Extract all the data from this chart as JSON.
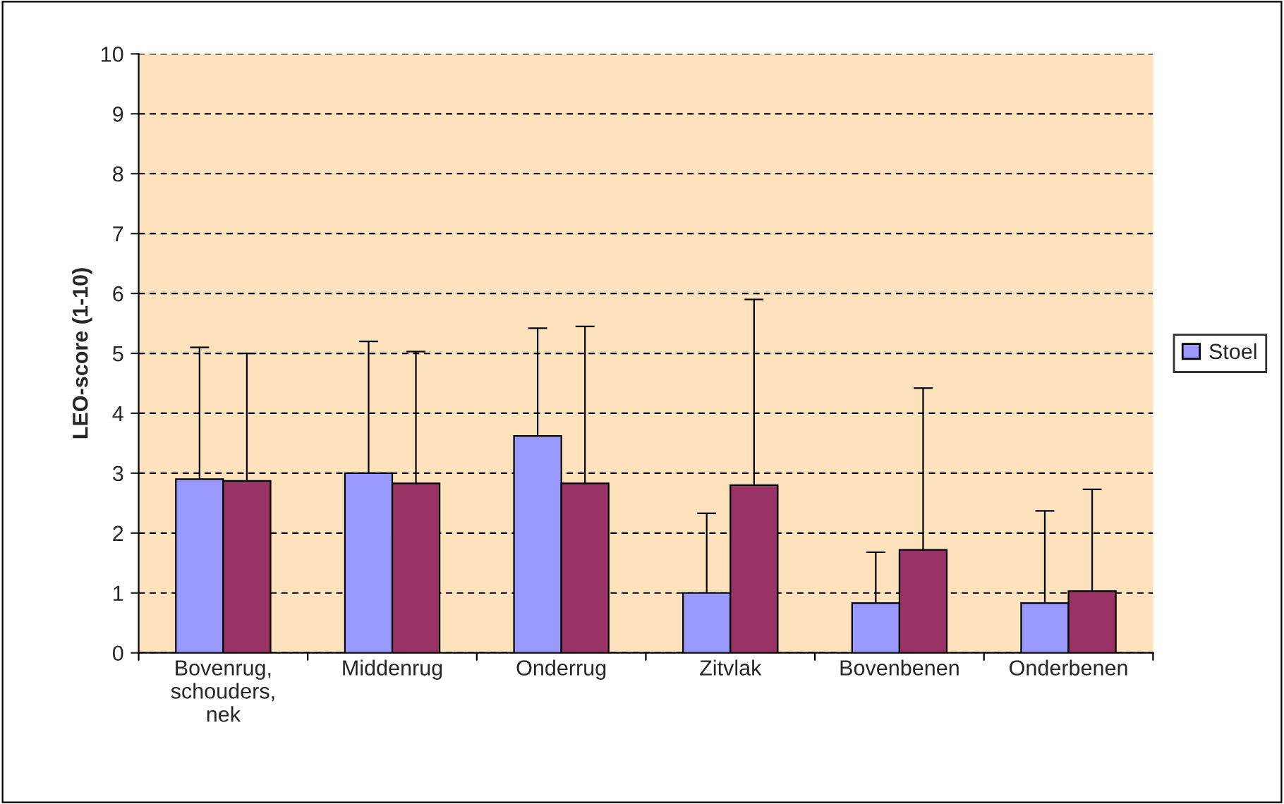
{
  "chart_data": {
    "type": "bar",
    "ylabel": "LEO-score (1-10)",
    "categories": [
      "Bovenrug,\nschouders,\nnek",
      "Middenrug",
      "Onderrug",
      "Zitvlak",
      "Bovenbenen",
      "Onderbenen"
    ],
    "series": [
      {
        "name": "Stoel",
        "color": "#9999ff",
        "values": [
          2.9,
          3.0,
          3.62,
          1.0,
          0.83,
          0.83
        ],
        "errors": [
          [
            2.9,
            5.1
          ],
          [
            3.0,
            5.2
          ],
          [
            3.62,
            5.42
          ],
          [
            1.0,
            2.33
          ],
          [
            0.83,
            1.68
          ],
          [
            0.83,
            2.37
          ]
        ]
      },
      {
        "color": "#993366",
        "values": [
          2.87,
          2.83,
          2.83,
          2.8,
          1.72,
          1.03
        ],
        "errors": [
          [
            2.87,
            5.0
          ],
          [
            2.83,
            5.03
          ],
          [
            2.83,
            5.45
          ],
          [
            2.8,
            5.9
          ],
          [
            1.72,
            4.42
          ],
          [
            1.03,
            2.73
          ]
        ]
      }
    ],
    "ylim": [
      0,
      10
    ],
    "yticks": [
      0,
      1,
      2,
      3,
      4,
      5,
      6,
      7,
      8,
      9,
      10
    ],
    "grid": "y",
    "legend": "right"
  }
}
